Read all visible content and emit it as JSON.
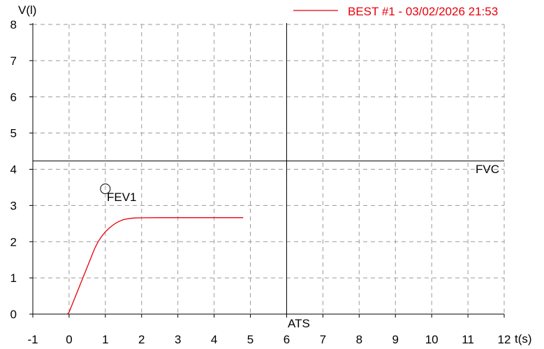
{
  "chart_data": {
    "type": "line",
    "xlabel": "t(s)",
    "ylabel": "V(l)",
    "xlim": [
      -1,
      12
    ],
    "ylim": [
      0,
      8
    ],
    "x_ticks": [
      "-1",
      "0",
      "1",
      "2",
      "3",
      "4",
      "5",
      "6",
      "7",
      "8",
      "9",
      "10",
      "11",
      "12"
    ],
    "y_ticks": [
      "0",
      "1",
      "2",
      "3",
      "4",
      "5",
      "6",
      "7",
      "8"
    ],
    "grid": true,
    "legend_position": "top-right",
    "series": [
      {
        "name": "BEST #1 - 03/02/2026  21:53",
        "color": "#e8000b",
        "x": [
          -0.05,
          0.0,
          0.1,
          0.2,
          0.3,
          0.4,
          0.5,
          0.6,
          0.7,
          0.8,
          0.9,
          1.0,
          1.1,
          1.2,
          1.3,
          1.4,
          1.5,
          1.6,
          1.7,
          1.8,
          2.0,
          2.5,
          3.0,
          3.5,
          4.0,
          4.5,
          4.8
        ],
        "y": [
          0.0,
          0.05,
          0.3,
          0.55,
          0.8,
          1.05,
          1.3,
          1.55,
          1.8,
          2.0,
          2.15,
          2.27,
          2.37,
          2.45,
          2.52,
          2.57,
          2.61,
          2.63,
          2.645,
          2.655,
          2.66,
          2.665,
          2.665,
          2.665,
          2.665,
          2.665,
          2.665
        ]
      }
    ],
    "reference_lines": {
      "fvc": {
        "label": "FVC",
        "y": 4.23
      },
      "ats": {
        "label": "ATS",
        "x": 6
      }
    },
    "marker": {
      "label": "FEV1",
      "x": 1.0,
      "y": 3.46
    }
  }
}
